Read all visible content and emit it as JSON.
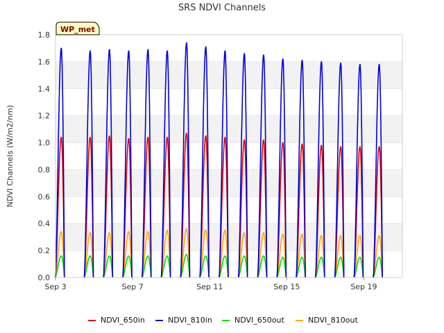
{
  "chart_data": {
    "type": "line",
    "title": "SRS NDVI Channels",
    "badge": "WP_met",
    "xlabel": "",
    "ylabel": "NDVI Channels (W/m2/nm)",
    "xlim": [
      3,
      21
    ],
    "ylim": [
      0,
      1.8
    ],
    "yticks": [
      0.0,
      0.2,
      0.4,
      0.6,
      0.8,
      1.0,
      1.2,
      1.4,
      1.6,
      1.8
    ],
    "ytick_labels": [
      "0.0",
      "0.2",
      "0.4",
      "0.6",
      "0.8",
      "1.0",
      "1.2",
      "1.4",
      "1.6",
      "1.8"
    ],
    "xticks": [
      3,
      7,
      11,
      15,
      19
    ],
    "xtick_labels": [
      "Sep 3",
      "Sep 7",
      "Sep 11",
      "Sep 15",
      "Sep 19"
    ],
    "x_unit": "day of September",
    "daily_peak_day": [
      3.3,
      4.8,
      5.8,
      6.8,
      7.8,
      8.8,
      9.8,
      10.8,
      11.8,
      12.8,
      13.8,
      14.8,
      15.8,
      16.8,
      17.8,
      18.8,
      19.8
    ],
    "series": [
      {
        "name": "NDVI_650in",
        "color": "#dd0000",
        "daily_peaks": [
          1.04,
          1.04,
          1.05,
          1.03,
          1.04,
          1.04,
          1.07,
          1.05,
          1.04,
          1.02,
          1.02,
          1.0,
          0.99,
          0.98,
          0.97,
          0.97,
          0.97
        ]
      },
      {
        "name": "NDVI_810in",
        "color": "#0000dd",
        "daily_peaks": [
          1.7,
          1.68,
          1.69,
          1.68,
          1.69,
          1.68,
          1.74,
          1.71,
          1.68,
          1.66,
          1.65,
          1.62,
          1.61,
          1.6,
          1.59,
          1.58,
          1.58
        ]
      },
      {
        "name": "NDVI_650out",
        "color": "#00dd00",
        "daily_peaks": [
          0.16,
          0.16,
          0.16,
          0.16,
          0.16,
          0.16,
          0.17,
          0.16,
          0.16,
          0.16,
          0.16,
          0.15,
          0.15,
          0.15,
          0.15,
          0.15,
          0.15
        ]
      },
      {
        "name": "NDVI_810out",
        "color": "#ffa500",
        "daily_peaks": [
          0.34,
          0.33,
          0.33,
          0.34,
          0.34,
          0.35,
          0.36,
          0.35,
          0.35,
          0.33,
          0.33,
          0.32,
          0.32,
          0.31,
          0.31,
          0.31,
          0.31
        ]
      }
    ],
    "grid": "horizontal bands",
    "legend_position": "bottom"
  }
}
